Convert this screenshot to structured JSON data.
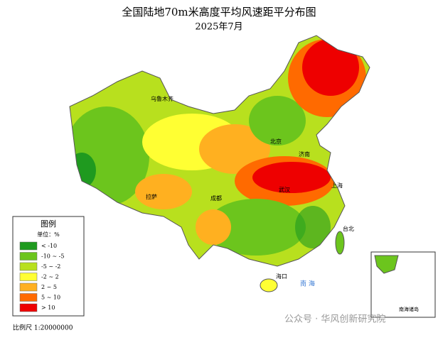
{
  "title": "全国陆地70m米高度平均风速距平分布图",
  "subtitle": "2025年7月",
  "legend": {
    "title": "图例",
    "unit": "单位：%",
    "items": [
      {
        "label": "< -10",
        "color": "#1f9a1f"
      },
      {
        "label": "-10 ~ -5",
        "color": "#6cc51d"
      },
      {
        "label": "-5 ~ -2",
        "color": "#b8e01e"
      },
      {
        "label": "-2 ~ 2",
        "color": "#ffff33"
      },
      {
        "label": "2 ~ 5",
        "color": "#ffb020"
      },
      {
        "label": "5 ~ 10",
        "color": "#ff6a00"
      },
      {
        "label": "> 10",
        "color": "#ee0000"
      }
    ]
  },
  "scale": "比例尺 1:20000000",
  "inset_label": "南海诸岛",
  "sea_label": "南  海",
  "watermark": "公众号 · 华风创新研究院",
  "cities": [
    {
      "name": "乌鲁木齐"
    },
    {
      "name": "拉萨"
    },
    {
      "name": "成都"
    },
    {
      "name": "北京"
    },
    {
      "name": "济南"
    },
    {
      "name": "上海"
    },
    {
      "name": "武汉"
    },
    {
      "name": "台北"
    },
    {
      "name": "海口"
    }
  ]
}
